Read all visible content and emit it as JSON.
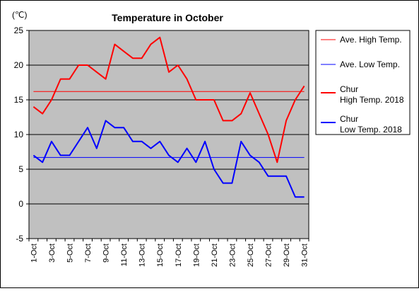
{
  "chart_data": {
    "type": "line",
    "title": "Temperature in October",
    "unit_label": "(℃)",
    "ylim": [
      -5,
      25
    ],
    "y_ticks": [
      25,
      20,
      15,
      10,
      5,
      0,
      -5
    ],
    "grid": "horizontal",
    "legend_position": "right",
    "x": [
      "1-Oct",
      "2-Oct",
      "3-Oct",
      "4-Oct",
      "5-Oct",
      "6-Oct",
      "7-Oct",
      "8-Oct",
      "9-Oct",
      "10-Oct",
      "11-Oct",
      "12-Oct",
      "13-Oct",
      "14-Oct",
      "15-Oct",
      "16-Oct",
      "17-Oct",
      "18-Oct",
      "19-Oct",
      "20-Oct",
      "21-Oct",
      "22-Oct",
      "23-Oct",
      "24-Oct",
      "25-Oct",
      "26-Oct",
      "27-Oct",
      "28-Oct",
      "29-Oct",
      "30-Oct",
      "31-Oct"
    ],
    "x_tick_labels": [
      "1-Oct",
      "3-Oct",
      "5-Oct",
      "7-Oct",
      "9-Oct",
      "11-Oct",
      "13-Oct",
      "15-Oct",
      "17-Oct",
      "19-Oct",
      "21-Oct",
      "23-Oct",
      "25-Oct",
      "27-Oct",
      "29-Oct",
      "31-Oct"
    ],
    "series": [
      {
        "name": "Ave. High Temp.",
        "name_lines": [
          "Ave. High Temp."
        ],
        "color": "#ff0000",
        "style": "thin",
        "values": [
          16.2,
          16.2,
          16.2,
          16.2,
          16.2,
          16.2,
          16.2,
          16.2,
          16.2,
          16.2,
          16.2,
          16.2,
          16.2,
          16.2,
          16.2,
          16.2,
          16.2,
          16.2,
          16.2,
          16.2,
          16.2,
          16.2,
          16.2,
          16.2,
          16.2,
          16.2,
          16.2,
          16.2,
          16.2,
          16.2,
          16.2
        ]
      },
      {
        "name": "Ave. Low Temp.",
        "name_lines": [
          "Ave. Low Temp."
        ],
        "color": "#0000ff",
        "style": "thin",
        "values": [
          6.7,
          6.7,
          6.7,
          6.7,
          6.7,
          6.7,
          6.7,
          6.7,
          6.7,
          6.7,
          6.7,
          6.7,
          6.7,
          6.7,
          6.7,
          6.7,
          6.7,
          6.7,
          6.7,
          6.7,
          6.7,
          6.7,
          6.7,
          6.7,
          6.7,
          6.7,
          6.7,
          6.7,
          6.7,
          6.7,
          6.7
        ]
      },
      {
        "name": "Chur High Temp. 2018",
        "name_lines": [
          "Chur",
          "High Temp. 2018"
        ],
        "color": "#ff0000",
        "style": "thick",
        "values": [
          14,
          13,
          15,
          18,
          18,
          20,
          20,
          19,
          18,
          23,
          22,
          21,
          21,
          23,
          24,
          19,
          20,
          18,
          15,
          15,
          15,
          12,
          12,
          13,
          16,
          13,
          10,
          6,
          12,
          15,
          17
        ]
      },
      {
        "name": "Chur Low Temp. 2018",
        "name_lines": [
          "Chur",
          "Low Temp. 2018"
        ],
        "color": "#0000ff",
        "style": "thick",
        "values": [
          7,
          6,
          9,
          7,
          7,
          9,
          11,
          8,
          12,
          11,
          11,
          9,
          9,
          8,
          9,
          7,
          6,
          8,
          6,
          9,
          5,
          3,
          3,
          9,
          7,
          6,
          4,
          4,
          4,
          1,
          1
        ]
      }
    ]
  }
}
